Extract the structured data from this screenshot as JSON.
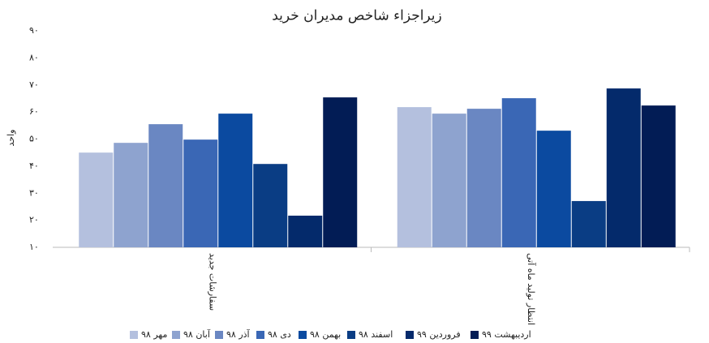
{
  "chart_data": {
    "type": "bar",
    "title": "زیراجزاء شاخص مدیران خرید",
    "y_label": "واحد",
    "categories": [
      "سفارشات جدید",
      "انتظار تولید ماه آتی"
    ],
    "series": [
      {
        "name": "مهر ۹۸",
        "color": "#b4c0de",
        "values": [
          45.0,
          61.8
        ]
      },
      {
        "name": "آبان ۹۸",
        "color": "#8ea3cf",
        "values": [
          48.6,
          59.4
        ]
      },
      {
        "name": "آذر ۹۸",
        "color": "#6a87c2",
        "values": [
          55.5,
          61.2
        ]
      },
      {
        "name": "دی ۹۸",
        "color": "#3a67b5",
        "values": [
          49.8,
          65.1
        ]
      },
      {
        "name": "بهمن ۹۸",
        "color": "#0b4aa0",
        "values": [
          59.4,
          53.1
        ]
      },
      {
        "name": "اسفند ۹۸",
        "color": "#0a3d84",
        "values": [
          40.8,
          27.1
        ]
      },
      {
        "name": "فروردین ۹۹",
        "color": "#042a6b",
        "values": [
          21.7,
          68.7
        ]
      },
      {
        "name": "اردیبهشت ۹۹",
        "color": "#021c55",
        "values": [
          65.4,
          62.4
        ]
      }
    ],
    "ylim": [
      10,
      90
    ],
    "yticks": [
      {
        "value": 10,
        "label": "۱۰"
      },
      {
        "value": 20,
        "label": "۲۰"
      },
      {
        "value": 30,
        "label": "۳۰"
      },
      {
        "value": 40,
        "label": "۴۰"
      },
      {
        "value": 50,
        "label": "۵۰"
      },
      {
        "value": 60,
        "label": "۶۰"
      },
      {
        "value": 70,
        "label": "۷۰"
      },
      {
        "value": 80,
        "label": "۸۰"
      },
      {
        "value": 90,
        "label": "۹۰"
      }
    ],
    "grid": false
  }
}
